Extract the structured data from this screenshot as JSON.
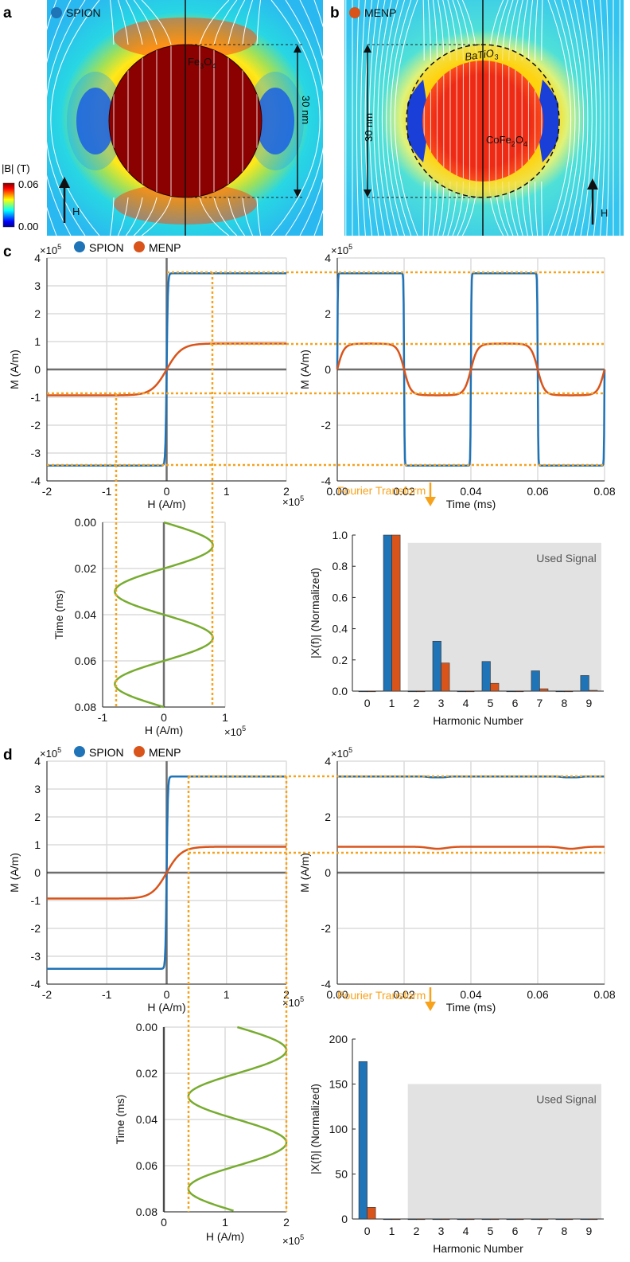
{
  "colors": {
    "spion": "#1f73b7",
    "menp": "#d9541a",
    "drive": "#77ac30",
    "guide": "#f7a21b",
    "grid": "#dcdcdc",
    "axis": "#6e6e6e",
    "used": "#e2e2e2"
  },
  "legend": {
    "spion": "SPION",
    "menp": "MENP"
  },
  "panel_a": {
    "letter": "a",
    "legend": "SPION",
    "material_base": "Fe",
    "material_sub": "3",
    "material_mid": "O",
    "material_sub2": "4",
    "size": "30 nm",
    "field": "H",
    "cbar_title": "|B| (T)",
    "cbar_max": "0.06",
    "cbar_min": "0.00"
  },
  "panel_b": {
    "letter": "b",
    "legend": "MENP",
    "shell_base": "BaTiO",
    "shell_sub": "3",
    "core_base": "CoFe",
    "core_sub": "2",
    "core_mid": "O",
    "core_sub2": "4",
    "size": "30 nm",
    "field": "H"
  },
  "panel_c": {
    "letter": "c"
  },
  "panel_d": {
    "letter": "d"
  },
  "fourier_label": "Fourier Transform",
  "used_signal": "Used Signal",
  "chart_data": [
    {
      "id": "c_mh",
      "type": "line",
      "xlabel": "H (A/m)",
      "ylabel": "M (A/m)",
      "x_exp": "×10",
      "x_pow": "5",
      "y_exp": "×10",
      "y_pow": "5",
      "xlim": [
        -2,
        2
      ],
      "ylim": [
        -4,
        4
      ],
      "xticks": [
        "-2",
        "-1",
        "0",
        "1",
        "2"
      ],
      "yticks": [
        "-4",
        "-3",
        "-2",
        "-1",
        "0",
        "1",
        "2",
        "3",
        "4"
      ],
      "series": [
        {
          "name": "SPION",
          "model": "M = 3.45·tanh(H/0.02)"
        },
        {
          "name": "MENP",
          "model": "M = 0.93·tanh(H/0.25)"
        }
      ]
    },
    {
      "id": "c_mt",
      "type": "line",
      "xlabel": "Time (ms)",
      "ylabel": "M (A/m)",
      "y_exp": "×10",
      "y_pow": "5",
      "xlim": [
        0,
        0.08
      ],
      "ylim": [
        -4,
        4
      ],
      "xticks": [
        "0.00",
        "0.02",
        "0.04",
        "0.06",
        "0.08"
      ],
      "yticks": [
        "-4",
        "-2",
        "0",
        "2",
        "4"
      ],
      "series": [
        {
          "name": "SPION",
          "peak": 3.45
        },
        {
          "name": "MENP",
          "peak": 0.93
        }
      ],
      "drive_period_ms": 0.04,
      "drive_amplitude": 0.8
    },
    {
      "id": "c_ht",
      "type": "line",
      "xlabel": "H (A/m)",
      "ylabel": "Time (ms)",
      "x_exp": "×10",
      "x_pow": "5",
      "xlim": [
        -1,
        1
      ],
      "ylim": [
        0,
        0.08
      ],
      "xticks": [
        "-1",
        "0",
        "1"
      ],
      "yticks": [
        "0.00",
        "0.02",
        "0.04",
        "0.06",
        "0.08"
      ],
      "series": [
        {
          "name": "Drive field",
          "model": "H = 0.8·sin(2π t/0.04)"
        }
      ]
    },
    {
      "id": "c_fft",
      "type": "bar",
      "xlabel": "Harmonic Number",
      "ylabel": "|X(f)| (Normalized)",
      "ylim": [
        0,
        1
      ],
      "categories": [
        "0",
        "1",
        "2",
        "3",
        "4",
        "5",
        "6",
        "7",
        "8",
        "9"
      ],
      "yticks": [
        "0.0",
        "0.2",
        "0.4",
        "0.6",
        "0.8",
        "1.0"
      ],
      "series": [
        {
          "name": "SPION",
          "values": [
            0,
            1.0,
            0,
            0.32,
            0,
            0.19,
            0,
            0.13,
            0,
            0.1
          ]
        },
        {
          "name": "MENP",
          "values": [
            0,
            1.0,
            0,
            0.18,
            0,
            0.05,
            0,
            0.015,
            0,
            0.005
          ]
        }
      ]
    },
    {
      "id": "d_mh",
      "type": "line",
      "xlabel": "H (A/m)",
      "ylabel": "M (A/m)",
      "x_exp": "×10",
      "x_pow": "5",
      "y_exp": "×10",
      "y_pow": "5",
      "xlim": [
        -2,
        2
      ],
      "ylim": [
        -4,
        4
      ],
      "xticks": [
        "-2",
        "-1",
        "0",
        "1",
        "2"
      ],
      "yticks": [
        "-4",
        "-3",
        "-2",
        "-1",
        "0",
        "1",
        "2",
        "3",
        "4"
      ],
      "series": [
        {
          "name": "SPION",
          "model": "M = 3.45·tanh(H/0.02)"
        },
        {
          "name": "MENP",
          "model": "M = 0.93·tanh(H/0.25)"
        }
      ]
    },
    {
      "id": "d_mt",
      "type": "line",
      "xlabel": "Time (ms)",
      "ylabel": "M (A/m)",
      "y_exp": "×10",
      "y_pow": "5",
      "xlim": [
        0,
        0.08
      ],
      "ylim": [
        -4,
        4
      ],
      "xticks": [
        "0.00",
        "0.02",
        "0.04",
        "0.06",
        "0.08"
      ],
      "yticks": [
        "-4",
        "-2",
        "0",
        "2",
        "4"
      ],
      "series": [
        {
          "name": "SPION",
          "peak": 3.45,
          "min": 3.42
        },
        {
          "name": "MENP",
          "peak": 0.93,
          "min": 0.72
        }
      ],
      "drive_offset": 1.2,
      "drive_amplitude": 0.8
    },
    {
      "id": "d_ht",
      "type": "line",
      "xlabel": "H (A/m)",
      "ylabel": "Time (ms)",
      "x_exp": "×10",
      "x_pow": "5",
      "xlim": [
        0,
        2
      ],
      "ylim": [
        0,
        0.08
      ],
      "xticks": [
        "0",
        "1",
        "2"
      ],
      "yticks": [
        "0.00",
        "0.02",
        "0.04",
        "0.06",
        "0.08"
      ],
      "series": [
        {
          "name": "Drive field",
          "model": "H = 1.2 + 0.8·sin(2π t/0.04)"
        }
      ]
    },
    {
      "id": "d_fft",
      "type": "bar",
      "xlabel": "Harmonic Number",
      "ylabel": "|X(f)| (Normalized)",
      "ylim": [
        0,
        200
      ],
      "categories": [
        "0",
        "1",
        "2",
        "3",
        "4",
        "5",
        "6",
        "7",
        "8",
        "9"
      ],
      "yticks": [
        "0",
        "50",
        "100",
        "150",
        "200"
      ],
      "series": [
        {
          "name": "SPION",
          "values": [
            175,
            0,
            0,
            0,
            0,
            0,
            0,
            0,
            0,
            0
          ]
        },
        {
          "name": "MENP",
          "values": [
            13,
            0,
            0,
            0,
            0,
            0,
            0,
            0,
            0,
            0
          ]
        }
      ]
    }
  ]
}
